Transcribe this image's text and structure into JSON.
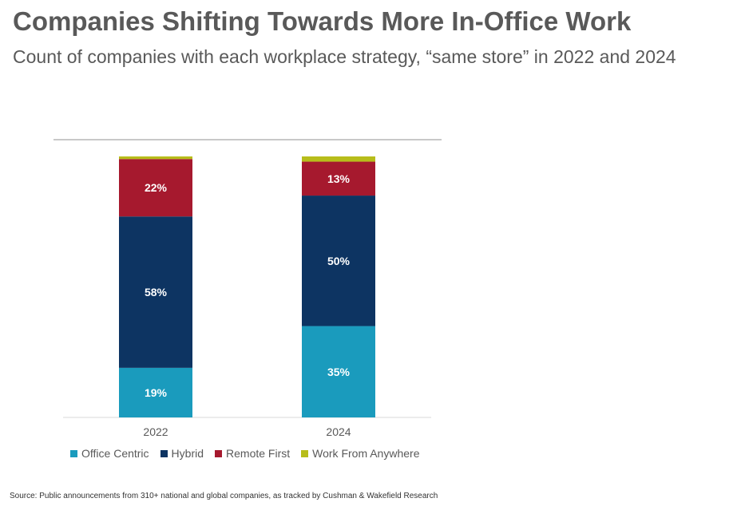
{
  "title": "Companies Shifting Towards More In-Office Work",
  "subtitle": "Count of companies with each workplace strategy, “same store” in 2022 and 2024",
  "source": "Source: Public announcements from 310+ national and global companies, as tracked by Cushman & Wakefield Research",
  "colors": {
    "Office Centric": "#1a9bbd",
    "Hybrid": "#0d3462",
    "Remote First": "#a6192e",
    "Work From Anywhere": "#b7bd1a"
  },
  "chart_data": {
    "type": "bar",
    "stacked": true,
    "categories": [
      "2022",
      "2024"
    ],
    "series": [
      {
        "name": "Office Centric",
        "values": [
          19,
          35
        ],
        "labels": [
          "19%",
          "35%"
        ]
      },
      {
        "name": "Hybrid",
        "values": [
          58,
          50
        ],
        "labels": [
          "58%",
          "50%"
        ]
      },
      {
        "name": "Remote First",
        "values": [
          22,
          13
        ],
        "labels": [
          "22%",
          "13%"
        ]
      },
      {
        "name": "Work From Anywhere",
        "values": [
          1,
          2
        ],
        "labels": [
          "",
          ""
        ]
      }
    ],
    "ylim": [
      0,
      100
    ],
    "grid": false,
    "legend": "bottom"
  }
}
